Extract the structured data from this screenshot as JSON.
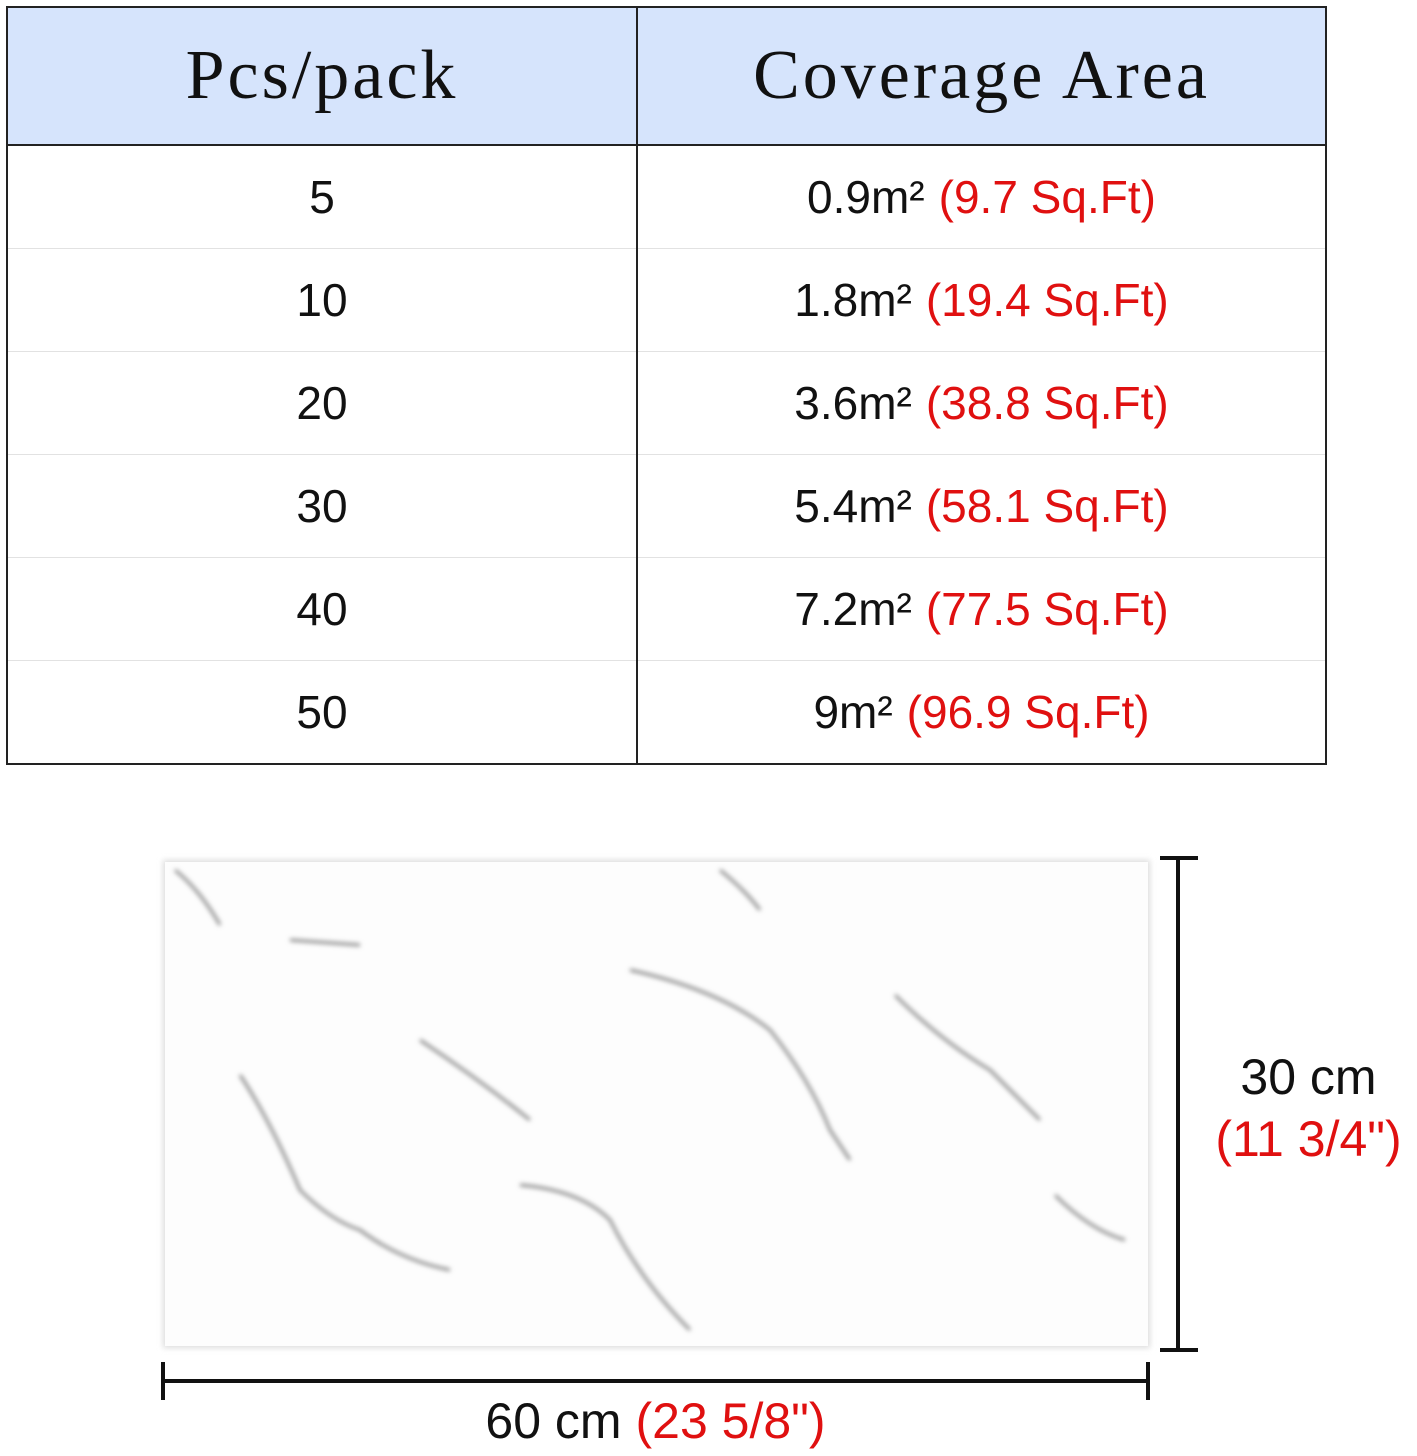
{
  "table": {
    "header": [
      "Pcs/pack",
      "Coverage Area"
    ],
    "rows": [
      [
        5,
        "0.9m²",
        "(9.7 Sq.Ft)"
      ],
      [
        10,
        "1.8m²",
        "(19.4 Sq.Ft)"
      ],
      [
        20,
        "3.6m²",
        "(38.8 Sq.Ft)"
      ],
      [
        30,
        "5.4m²",
        "(58.1 Sq.Ft)"
      ],
      [
        40,
        "7.2m²",
        "(77.5 Sq.Ft)"
      ],
      [
        50,
        "9m²",
        "(96.9 Sq.Ft)"
      ]
    ]
  },
  "tile": {
    "height_metric": "30 cm",
    "height_imperial": "(11 3/4\")",
    "width_metric": "60 cm",
    "width_imperial": "(23 5/8\")"
  }
}
